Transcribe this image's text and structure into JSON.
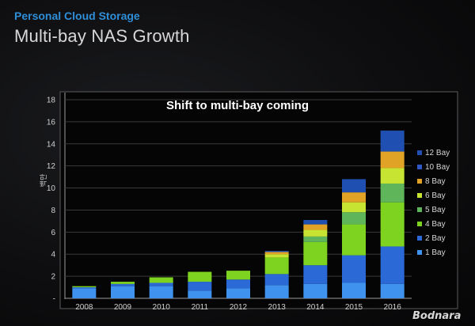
{
  "slide": {
    "kicker": "Personal Cloud Storage",
    "title": "Multi-bay NAS Growth",
    "watermark": "Bodnara"
  },
  "chart_data": {
    "type": "bar",
    "stacked": true,
    "title": "Shift to multi-bay coming",
    "ylabel": "백만",
    "xlabel": "",
    "ylim": [
      0,
      18
    ],
    "yticks": [
      0,
      2,
      4,
      6,
      8,
      10,
      12,
      14,
      16,
      18
    ],
    "ytick_labels": [
      "-",
      "2",
      "4",
      "6",
      "8",
      "10",
      "12",
      "14",
      "16",
      "18"
    ],
    "grid": true,
    "legend_position": "right",
    "categories": [
      "2008",
      "2009",
      "2010",
      "2011",
      "2012",
      "2013",
      "2014",
      "2015",
      "2016"
    ],
    "series": [
      {
        "name": "1 Bay",
        "color": "#3f93ee",
        "values": [
          0.9,
          1.1,
          1.1,
          0.7,
          0.9,
          1.2,
          1.3,
          1.4,
          1.3
        ]
      },
      {
        "name": "2 Bay",
        "color": "#2b6ad6",
        "values": [
          0.1,
          0.2,
          0.3,
          0.8,
          0.8,
          1.0,
          1.7,
          2.5,
          3.4
        ]
      },
      {
        "name": "4 Bay",
        "color": "#7ed321",
        "values": [
          0.1,
          0.2,
          0.5,
          0.9,
          0.8,
          1.5,
          2.1,
          2.8,
          4.0
        ]
      },
      {
        "name": "5 Bay",
        "color": "#5fb55a",
        "values": [
          0.0,
          0.0,
          0.0,
          0.0,
          0.0,
          0.0,
          0.5,
          1.1,
          1.7
        ]
      },
      {
        "name": "6 Bay",
        "color": "#c7e432",
        "values": [
          0.0,
          0.0,
          0.0,
          0.0,
          0.0,
          0.3,
          0.6,
          0.9,
          1.4
        ]
      },
      {
        "name": "8 Bay",
        "color": "#e0a326",
        "values": [
          0.0,
          0.0,
          0.0,
          0.0,
          0.0,
          0.2,
          0.5,
          0.9,
          1.5
        ]
      },
      {
        "name": "10 Bay",
        "color": "#2f58c4",
        "values": [
          0.0,
          0.0,
          0.0,
          0.0,
          0.0,
          0.0,
          0.0,
          0.0,
          0.0
        ]
      },
      {
        "name": "12 Bay",
        "color": "#1f4fb0",
        "values": [
          0.0,
          0.0,
          0.0,
          0.0,
          0.0,
          0.1,
          0.4,
          1.2,
          1.9
        ]
      }
    ]
  }
}
